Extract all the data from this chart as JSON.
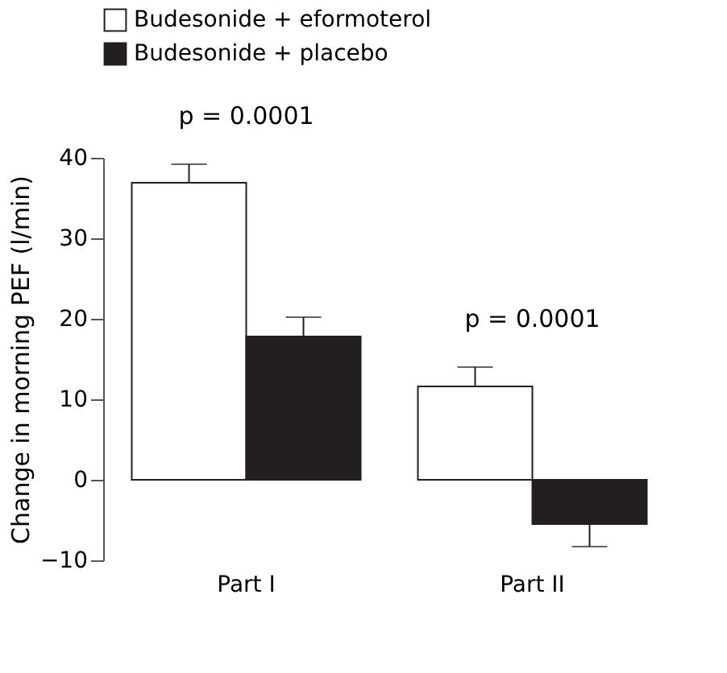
{
  "chart_data": {
    "type": "bar",
    "ylabel": "Change in morning PEF (l/min)",
    "categories": [
      "Part I",
      "Part II"
    ],
    "series": [
      {
        "name": "Budesonide + eformoterol",
        "color": "#ffffff",
        "values": [
          36.9,
          11.6
        ],
        "errors": [
          2.3,
          2.4
        ]
      },
      {
        "name": "Budesonide + placebo",
        "color": "#231f20",
        "values": [
          17.8,
          -5.5
        ],
        "errors": [
          2.4,
          2.8
        ]
      }
    ],
    "ylim": [
      -10,
      40
    ],
    "yticks": [
      -10,
      0,
      10,
      20,
      30,
      40
    ],
    "grid": false,
    "legend": "top",
    "annotations": [
      "p = 0.0001",
      "p = 0.0001"
    ]
  }
}
